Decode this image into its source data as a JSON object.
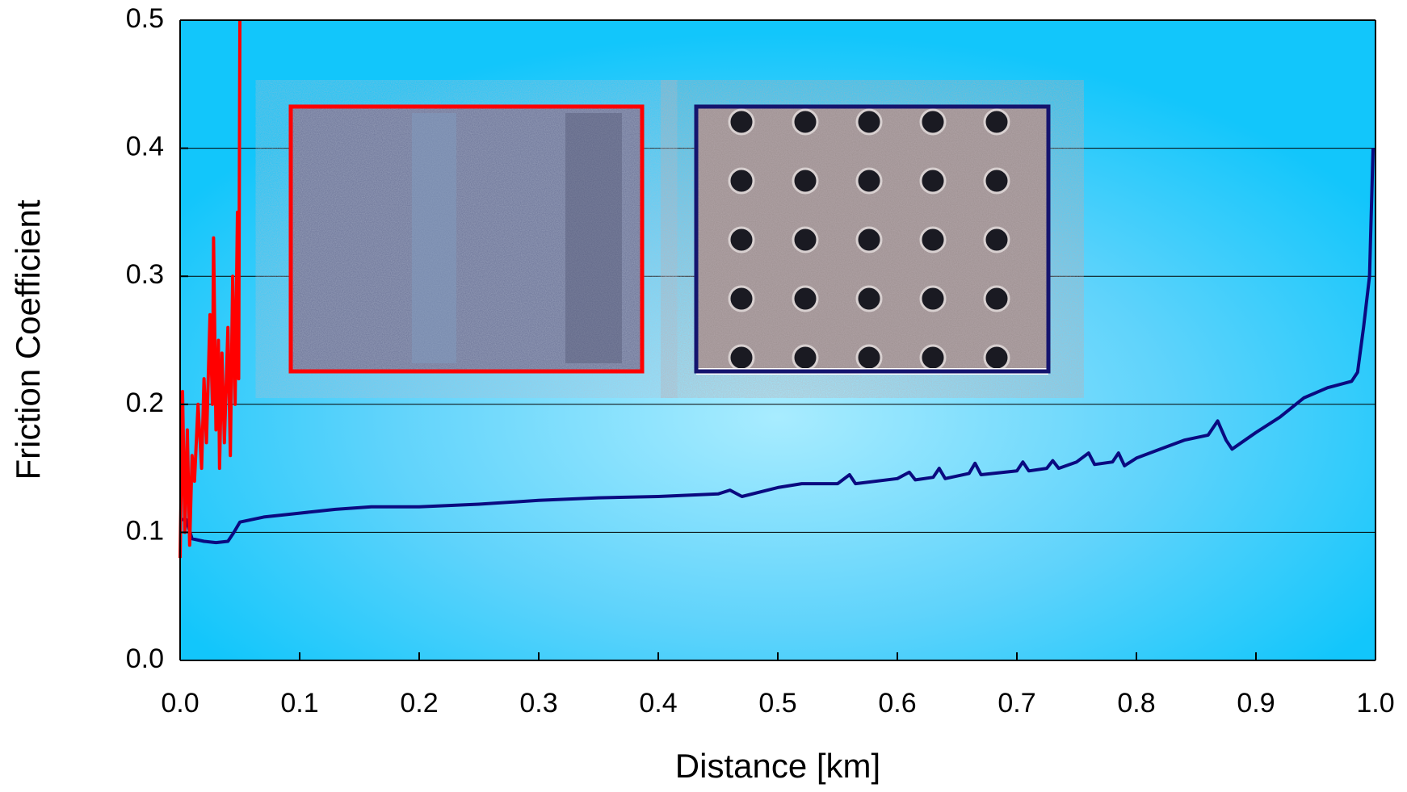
{
  "chart_data": {
    "type": "line",
    "x_label": "Distance [km]",
    "y_label": "Friction Coefficient",
    "xlim": [
      0,
      1
    ],
    "ylim": [
      0,
      0.5
    ],
    "xticks": [
      {
        "value": 0,
        "label": "0.0"
      },
      0.1,
      0.2,
      0.3,
      0.4,
      0.5,
      0.6,
      0.7,
      0.8,
      0.9,
      {
        "value": 1,
        "label": "1.0"
      }
    ],
    "yticks": [
      {
        "value": 0,
        "label": "0.0"
      },
      0.1,
      0.2,
      0.3,
      0.4,
      0.5
    ],
    "grid": true,
    "series": [
      {
        "color": "#ff0000",
        "x": [
          0,
          0.002,
          0.004,
          0.006,
          0.008,
          0.01,
          0.012,
          0.015,
          0.018,
          0.02,
          0.022,
          0.025,
          0.027,
          0.028,
          0.03,
          0.032,
          0.033,
          0.035,
          0.037,
          0.04,
          0.042,
          0.044,
          0.046,
          0.048,
          0.049,
          0.05
        ],
        "values": [
          0.08,
          0.21,
          0.1,
          0.18,
          0.09,
          0.16,
          0.14,
          0.2,
          0.15,
          0.22,
          0.17,
          0.27,
          0.2,
          0.33,
          0.18,
          0.25,
          0.15,
          0.24,
          0.17,
          0.26,
          0.16,
          0.3,
          0.2,
          0.35,
          0.22,
          0.5
        ]
      },
      {
        "color": "#0a0a80",
        "x": [
          0,
          0.005,
          0.01,
          0.02,
          0.03,
          0.04,
          0.045,
          0.05,
          0.07,
          0.1,
          0.13,
          0.16,
          0.2,
          0.25,
          0.3,
          0.35,
          0.4,
          0.45,
          0.46,
          0.47,
          0.5,
          0.52,
          0.55,
          0.56,
          0.565,
          0.6,
          0.61,
          0.615,
          0.63,
          0.635,
          0.64,
          0.66,
          0.665,
          0.67,
          0.7,
          0.705,
          0.71,
          0.725,
          0.73,
          0.735,
          0.75,
          0.76,
          0.765,
          0.78,
          0.785,
          0.79,
          0.8,
          0.82,
          0.84,
          0.86,
          0.868,
          0.875,
          0.88,
          0.9,
          0.92,
          0.94,
          0.96,
          0.98,
          0.985,
          0.99,
          0.995,
          0.998
        ],
        "values": [
          0.11,
          0.11,
          0.095,
          0.093,
          0.092,
          0.093,
          0.1,
          0.108,
          0.112,
          0.115,
          0.118,
          0.12,
          0.12,
          0.122,
          0.125,
          0.127,
          0.128,
          0.13,
          0.133,
          0.128,
          0.135,
          0.138,
          0.138,
          0.145,
          0.138,
          0.142,
          0.147,
          0.141,
          0.143,
          0.15,
          0.142,
          0.146,
          0.154,
          0.145,
          0.148,
          0.155,
          0.148,
          0.15,
          0.156,
          0.15,
          0.155,
          0.162,
          0.153,
          0.155,
          0.162,
          0.152,
          0.158,
          0.165,
          0.172,
          0.176,
          0.187,
          0.172,
          0.165,
          0.178,
          0.19,
          0.205,
          0.213,
          0.218,
          0.225,
          0.26,
          0.3,
          0.4
        ]
      }
    ]
  }
}
